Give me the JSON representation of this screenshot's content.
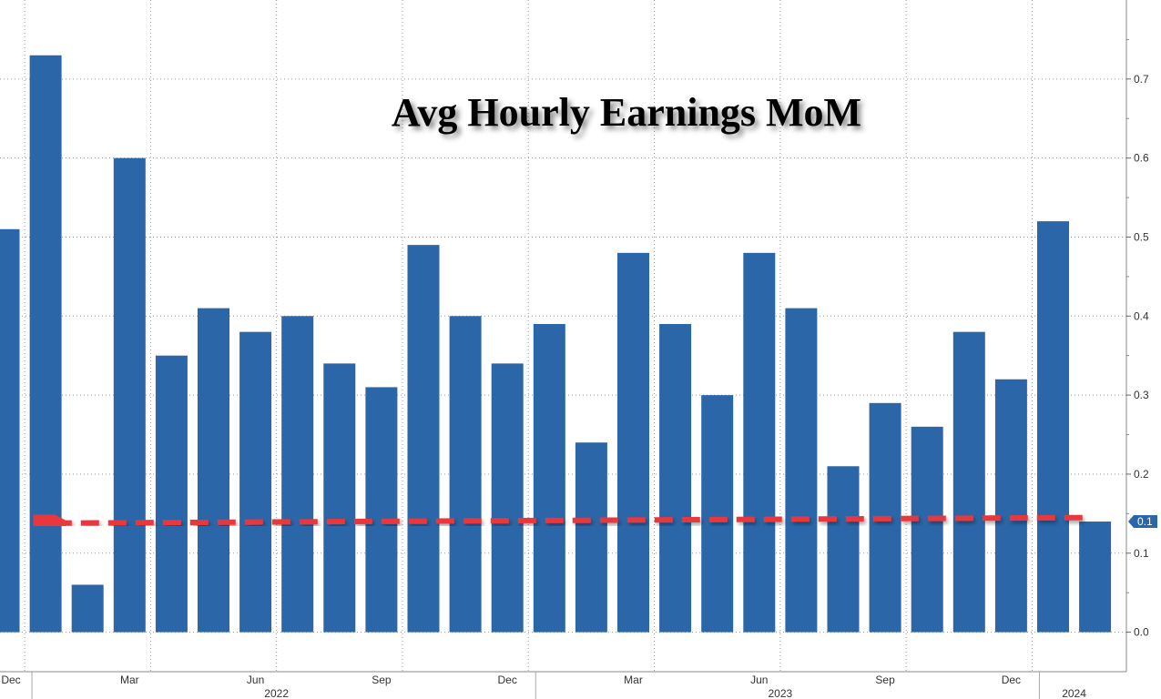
{
  "chart_data": {
    "type": "bar",
    "title": "Avg Hourly Earnings MoM",
    "xlabel": "",
    "ylabel": "",
    "ylim": [
      -0.05,
      0.8
    ],
    "y_ticks": [
      "0.0",
      "0.1",
      "0.2",
      "0.3",
      "0.4",
      "0.5",
      "0.6",
      "0.7"
    ],
    "grid": true,
    "color": "#2b66a8",
    "categories": [
      "Dec 2021",
      "Jan 2022",
      "Feb 2022",
      "Mar 2022",
      "Apr 2022",
      "May 2022",
      "Jun 2022",
      "Jul 2022",
      "Aug 2022",
      "Sep 2022",
      "Oct 2022",
      "Nov 2022",
      "Dec 2022",
      "Jan 2023",
      "Feb 2023",
      "Mar 2023",
      "Apr 2023",
      "May 2023",
      "Jun 2023",
      "Jul 2023",
      "Aug 2023",
      "Sep 2023",
      "Oct 2023",
      "Nov 2023",
      "Dec 2023",
      "Jan 2024",
      "Feb 2024"
    ],
    "values": [
      0.51,
      0.73,
      0.06,
      0.6,
      0.35,
      0.41,
      0.38,
      0.4,
      0.34,
      0.31,
      0.49,
      0.4,
      0.34,
      0.39,
      0.24,
      0.48,
      0.39,
      0.3,
      0.48,
      0.41,
      0.21,
      0.29,
      0.26,
      0.38,
      0.32,
      0.52,
      0.14
    ],
    "x_tick_labels": [
      {
        "index": 0,
        "label": "Dec"
      },
      {
        "index": 3,
        "label": "Mar"
      },
      {
        "index": 6,
        "label": "Jun"
      },
      {
        "index": 9,
        "label": "Sep"
      },
      {
        "index": 12,
        "label": "Dec"
      },
      {
        "index": 15,
        "label": "Mar"
      },
      {
        "index": 18,
        "label": "Jun"
      },
      {
        "index": 21,
        "label": "Sep"
      },
      {
        "index": 24,
        "label": "Dec"
      }
    ],
    "year_labels": [
      {
        "label": "2022",
        "start": 1,
        "end": 12
      },
      {
        "label": "2023",
        "start": 13,
        "end": 24
      },
      {
        "label": "2024",
        "start": 25,
        "end": 26
      }
    ],
    "last_value_label": "0.1",
    "last_value_color": "#2b66a8",
    "annotation": {
      "type": "dashed-arrow",
      "from_index": 25.7,
      "to_index": 1.2,
      "y_start": 0.145,
      "y_end": 0.138,
      "color": "#e8393c"
    }
  }
}
